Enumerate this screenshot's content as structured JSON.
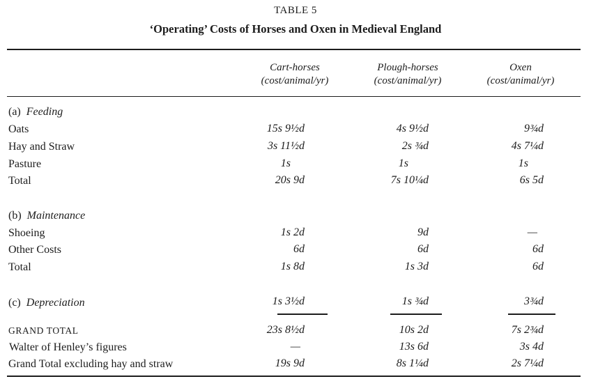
{
  "title": "TABLE 5",
  "subtitle": "‘Operating’ Costs of Horses and Oxen in Medieval England",
  "columns": [
    {
      "name": "Cart-horses",
      "unit": "(cost/animal/yr)"
    },
    {
      "name": "Plough-horses",
      "unit": "(cost/animal/yr)"
    },
    {
      "name": "Oxen",
      "unit": "(cost/animal/yr)"
    }
  ],
  "sections": {
    "feeding": {
      "num": "(a)",
      "label": "Feeding"
    },
    "maintenance": {
      "num": "(b)",
      "label": "Maintenance"
    },
    "depreciation": {
      "num": "(c)",
      "label": "Depreciation"
    }
  },
  "rows": {
    "oats": {
      "label": "Oats",
      "values": [
        "15s 9½d",
        "4s 9½d",
        "9¾d"
      ]
    },
    "hay": {
      "label": "Hay and Straw",
      "values": [
        "3s 11½d",
        "2s ¾d",
        "4s 7¼d"
      ]
    },
    "pasture": {
      "label": "Pasture",
      "values": [
        "1s",
        "1s",
        "1s"
      ]
    },
    "feed_total": {
      "label": "Total",
      "values": [
        "20s 9d",
        "7s 10¼d",
        "6s 5d"
      ]
    },
    "shoeing": {
      "label": "Shoeing",
      "values": [
        "1s 2d",
        "9d",
        "—"
      ]
    },
    "other": {
      "label": "Other Costs",
      "values": [
        "6d",
        "6d",
        "6d"
      ]
    },
    "maint_total": {
      "label": "Total",
      "values": [
        "1s 8d",
        "1s 3d",
        "6d"
      ]
    },
    "depreciation": {
      "values": [
        "1s 3½d",
        "1s ¾d",
        "3¾d"
      ]
    },
    "grand_total": {
      "label": "GRAND TOTAL",
      "values": [
        "23s 8½d",
        "10s 2d",
        "7s 2¾d"
      ]
    },
    "henley": {
      "label": "Walter of Henley’s figures",
      "values": [
        "—",
        "13s 6d",
        "3s 4d"
      ]
    },
    "excl": {
      "label": "Grand Total excluding hay and straw",
      "values": [
        "19s 9d",
        "8s 1¼d",
        "2s 7¼d"
      ]
    }
  }
}
